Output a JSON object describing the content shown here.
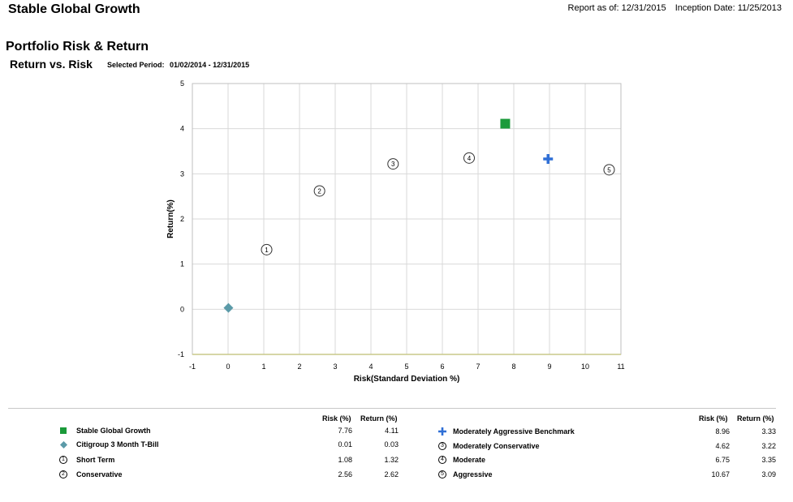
{
  "header": {
    "title": "Stable Global Growth",
    "report_as_of": "Report as of: 12/31/2015",
    "inception_date": "Inception Date: 11/25/2013"
  },
  "section": {
    "title": "Portfolio Risk & Return",
    "chart_title": "Return vs. Risk",
    "period_label": "Selected Period:",
    "period_value": "01/02/2014  -  12/31/2015"
  },
  "legend": {
    "risk_header": "Risk (%)",
    "return_header": "Return (%)",
    "left": [
      {
        "name": "Stable Global Growth",
        "risk": "7.76",
        "ret": "4.11",
        "symbol": "square",
        "color": "#1a9a3a"
      },
      {
        "name": "Citigroup 3 Month T-Bill",
        "risk": "0.01",
        "ret": "0.03",
        "symbol": "diamond",
        "color": "#5b9aa8"
      },
      {
        "name": "Short Term",
        "risk": "1.08",
        "ret": "1.32",
        "symbol": "circle",
        "num": "1"
      },
      {
        "name": "Conservative",
        "risk": "2.56",
        "ret": "2.62",
        "symbol": "circle",
        "num": "2"
      }
    ],
    "right": [
      {
        "name": "Moderately Aggressive Benchmark",
        "risk": "8.96",
        "ret": "3.33",
        "symbol": "plus",
        "color": "#2f6fd6"
      },
      {
        "name": "Moderately Conservative",
        "risk": "4.62",
        "ret": "3.22",
        "symbol": "circle",
        "num": "3"
      },
      {
        "name": "Moderate",
        "risk": "6.75",
        "ret": "3.35",
        "symbol": "circle",
        "num": "4"
      },
      {
        "name": "Aggressive",
        "risk": "10.67",
        "ret": "3.09",
        "symbol": "circle",
        "num": "5"
      }
    ]
  },
  "chart_data": {
    "type": "scatter",
    "title": "Return vs. Risk",
    "xlabel": "Risk(Standard Deviation %)",
    "ylabel": "Return(%)",
    "xlim": [
      -1,
      11
    ],
    "ylim": [
      -1,
      5
    ],
    "xticks": [
      -1,
      0,
      1,
      2,
      3,
      4,
      5,
      6,
      7,
      8,
      9,
      10,
      11
    ],
    "yticks": [
      -1,
      0,
      1,
      2,
      3,
      4,
      5
    ],
    "grid": true,
    "series": [
      {
        "name": "Stable Global Growth",
        "x": 7.76,
        "y": 4.11,
        "symbol": "square",
        "color": "#1a9a3a"
      },
      {
        "name": "Citigroup 3 Month T-Bill",
        "x": 0.01,
        "y": 0.03,
        "symbol": "diamond",
        "color": "#5b9aa8"
      },
      {
        "name": "Short Term",
        "x": 1.08,
        "y": 1.32,
        "symbol": "circle",
        "label": "1"
      },
      {
        "name": "Conservative",
        "x": 2.56,
        "y": 2.62,
        "symbol": "circle",
        "label": "2"
      },
      {
        "name": "Moderately Conservative",
        "x": 4.62,
        "y": 3.22,
        "symbol": "circle",
        "label": "3"
      },
      {
        "name": "Moderate",
        "x": 6.75,
        "y": 3.35,
        "symbol": "circle",
        "label": "4"
      },
      {
        "name": "Aggressive",
        "x": 10.67,
        "y": 3.09,
        "symbol": "circle",
        "label": "5"
      },
      {
        "name": "Moderately Aggressive Benchmark",
        "x": 8.96,
        "y": 3.33,
        "symbol": "plus",
        "color": "#2f6fd6"
      }
    ]
  }
}
